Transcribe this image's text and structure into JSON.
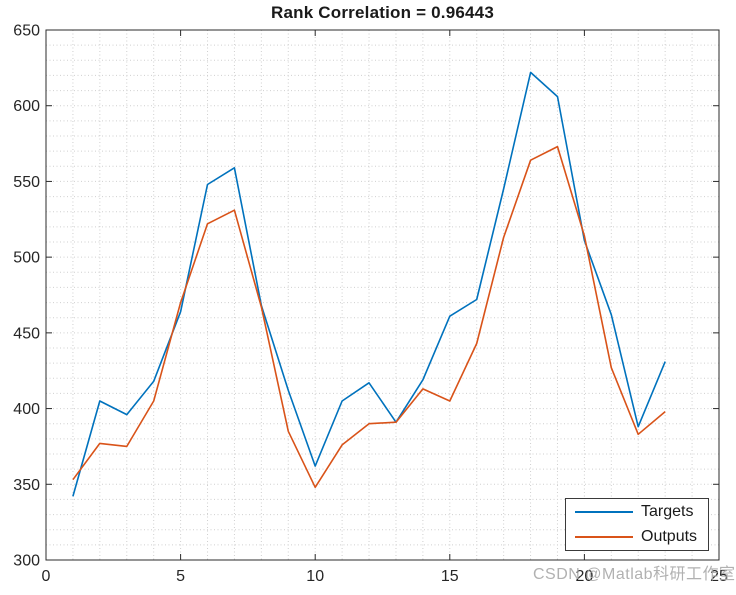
{
  "figure": {
    "watermark": "CSDN @Matlab科研工作室"
  },
  "chart_data": {
    "type": "line",
    "title": "Rank Correlation = 0.96443",
    "x": [
      1,
      2,
      3,
      4,
      5,
      6,
      7,
      8,
      9,
      10,
      11,
      12,
      13,
      14,
      15,
      16,
      17,
      18,
      19,
      20,
      21,
      22,
      23
    ],
    "series": [
      {
        "name": "Targets",
        "color": "#0072BD",
        "values": [
          342,
          405,
          396,
          418,
          464,
          548,
          559,
          468,
          412,
          362,
          405,
          417,
          391,
          419,
          461,
          472,
          545,
          622,
          606,
          511,
          462,
          388,
          431
        ]
      },
      {
        "name": "Outputs",
        "color": "#D95319",
        "values": [
          353,
          377,
          375,
          405,
          470,
          522,
          531,
          467,
          385,
          348,
          376,
          390,
          391,
          413,
          405,
          443,
          513,
          564,
          573,
          514,
          427,
          383,
          398
        ]
      }
    ],
    "xlim": [
      0,
      25
    ],
    "ylim": [
      300,
      650
    ],
    "xticks": [
      0,
      5,
      10,
      15,
      20,
      25
    ],
    "yticks": [
      300,
      350,
      400,
      450,
      500,
      550,
      600,
      650
    ],
    "x_minor_step": 1,
    "y_minor_step": 10,
    "grid_on": true,
    "grid_style": "dotted",
    "grid_color": "#cfcfcf",
    "axis_color": "#2b2b2b",
    "tick_label_color": "#262626",
    "legend_position": "southeast"
  }
}
